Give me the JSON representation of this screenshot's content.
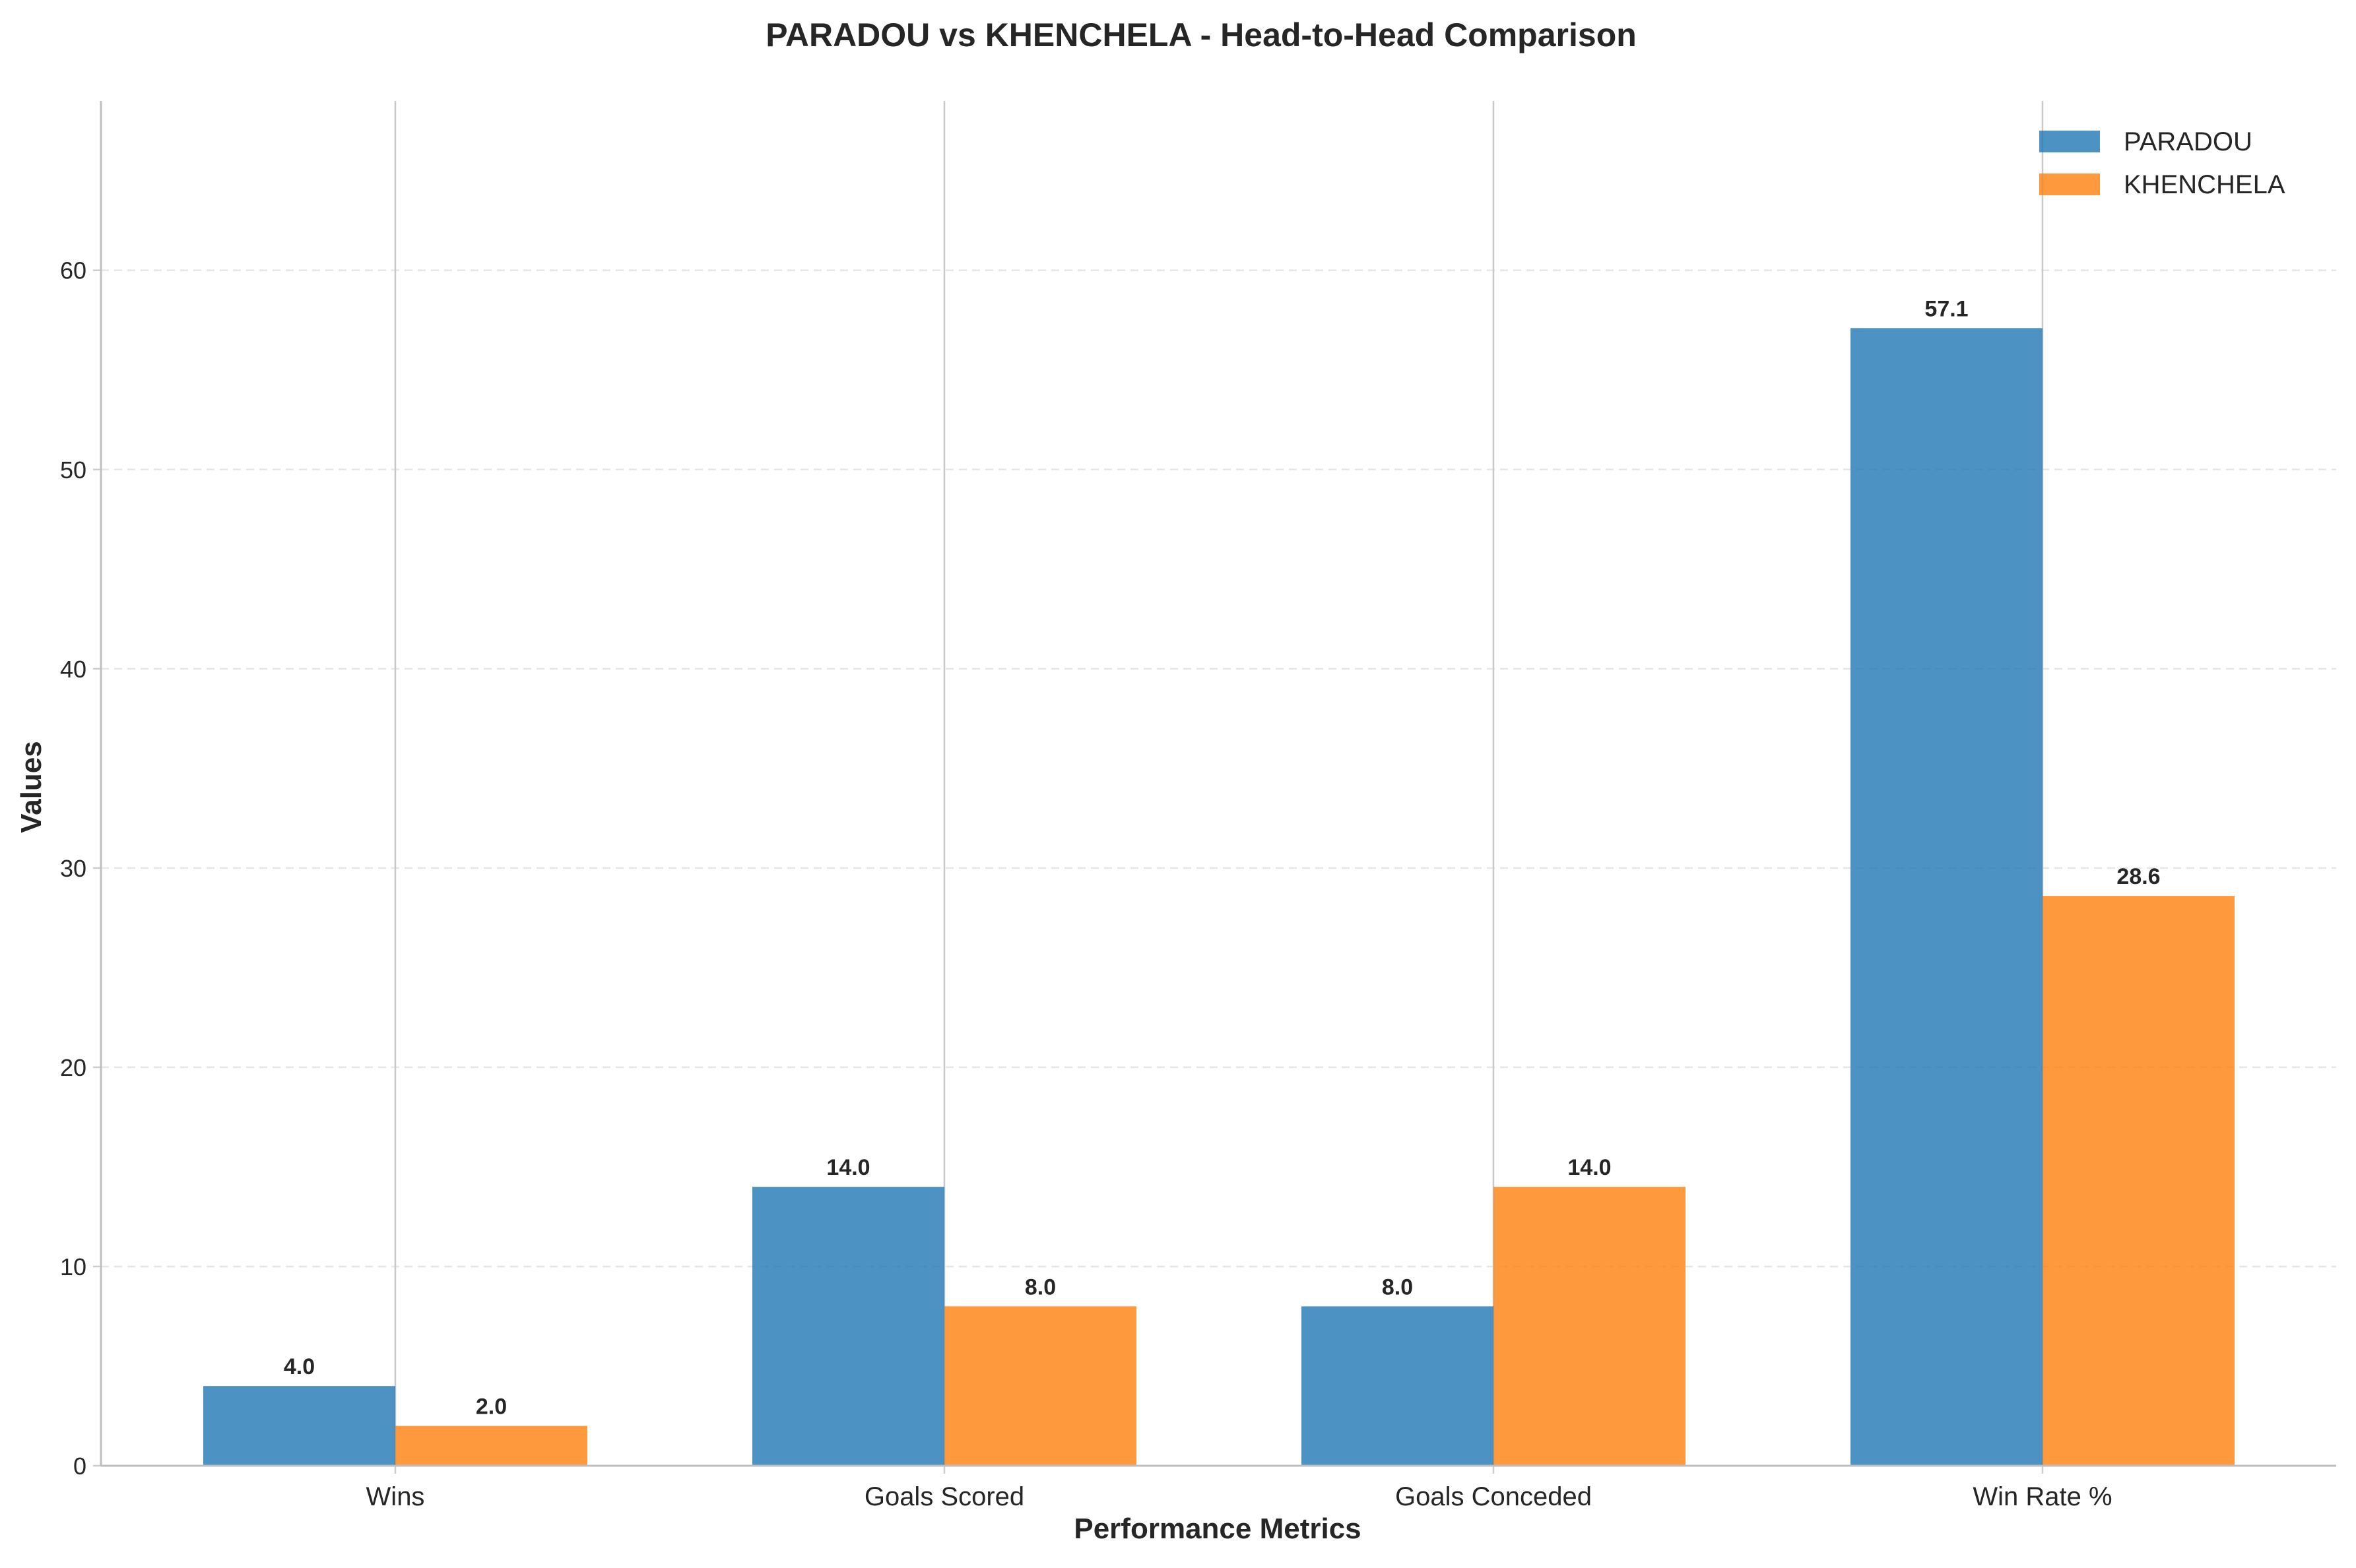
{
  "chart_data": {
    "type": "bar",
    "title": "PARADOU vs KHENCHELA - Head-to-Head Comparison",
    "xlabel": "Performance Metrics",
    "ylabel": "Values",
    "categories": [
      "Wins",
      "Goals Scored",
      "Goals Conceded",
      "Win Rate %"
    ],
    "series": [
      {
        "name": "PARADOU",
        "color": "#1f77b4",
        "values": [
          4.0,
          14.0,
          8.0,
          57.1
        ],
        "value_labels": [
          "4.0",
          "14.0",
          "8.0",
          "57.1"
        ]
      },
      {
        "name": "KHENCHELA",
        "color": "#ff7f0e",
        "values": [
          2.0,
          8.0,
          14.0,
          28.6
        ],
        "value_labels": [
          "2.0",
          "8.0",
          "14.0",
          "28.6"
        ]
      }
    ],
    "ylim": [
      0,
      68.5
    ],
    "yticks": [
      0,
      10,
      20,
      30,
      40,
      50,
      60
    ],
    "ytick_labels": [
      "0",
      "10",
      "20",
      "30",
      "40",
      "50",
      "60"
    ],
    "grid": "y-dashed",
    "legend_position": "top-right"
  }
}
